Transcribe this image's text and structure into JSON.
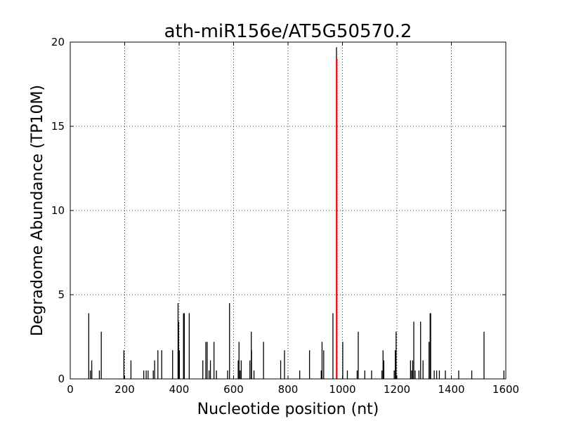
{
  "chart_data": {
    "type": "bar",
    "title": "ath-miR156e/AT5G50570.2",
    "xlabel": "Nucleotide position (nt)",
    "ylabel": "Degradome Abundance (TP10M)",
    "xlim": [
      0,
      1600
    ],
    "ylim": [
      0,
      20
    ],
    "xticks": [
      0,
      200,
      400,
      600,
      800,
      1000,
      1200,
      1400,
      1600
    ],
    "yticks": [
      0,
      5,
      10,
      15,
      20
    ],
    "grid": true,
    "series": [
      {
        "color": "#000000",
        "points": [
          [
            68,
            3.9
          ],
          [
            74,
            0.5
          ],
          [
            79,
            1.1
          ],
          [
            79,
            0.5
          ],
          [
            107,
            0.5
          ],
          [
            114,
            2.8
          ],
          [
            197,
            1.7
          ],
          [
            223,
            1.1
          ],
          [
            270,
            0.5
          ],
          [
            279,
            0.5
          ],
          [
            286,
            0.5
          ],
          [
            305,
            0.5
          ],
          [
            310,
            1.1
          ],
          [
            322,
            1.7
          ],
          [
            336,
            1.7
          ],
          [
            376,
            1.7
          ],
          [
            396,
            4.5
          ],
          [
            398,
            3.4
          ],
          [
            401,
            1.7
          ],
          [
            416,
            3.9
          ],
          [
            419,
            3.9
          ],
          [
            437,
            3.9
          ],
          [
            487,
            1.1
          ],
          [
            498,
            2.2
          ],
          [
            503,
            2.2
          ],
          [
            510,
            0.5
          ],
          [
            515,
            1.1
          ],
          [
            528,
            2.2
          ],
          [
            537,
            0.5
          ],
          [
            578,
            0.5
          ],
          [
            585,
            4.5
          ],
          [
            617,
            1.1
          ],
          [
            620,
            2.2
          ],
          [
            624,
            0.5
          ],
          [
            628,
            1.1
          ],
          [
            660,
            1.1
          ],
          [
            665,
            2.8
          ],
          [
            666,
            1.7
          ],
          [
            675,
            0.5
          ],
          [
            710,
            2.2
          ],
          [
            773,
            1.1
          ],
          [
            787,
            1.7
          ],
          [
            843,
            0.5
          ],
          [
            879,
            1.7
          ],
          [
            922,
            0.5
          ],
          [
            925,
            2.2
          ],
          [
            931,
            1.7
          ],
          [
            965,
            3.9
          ],
          [
            978,
            19.7
          ],
          [
            1001,
            2.2
          ],
          [
            1018,
            0.5
          ],
          [
            1054,
            0.5
          ],
          [
            1058,
            2.8
          ],
          [
            1082,
            0.5
          ],
          [
            1107,
            0.5
          ],
          [
            1145,
            0.5
          ],
          [
            1149,
            1.7
          ],
          [
            1152,
            1.1
          ],
          [
            1190,
            0.5
          ],
          [
            1194,
            1.7
          ],
          [
            1197,
            2.8
          ],
          [
            1250,
            1.1
          ],
          [
            1254,
            0.5
          ],
          [
            1258,
            1.1
          ],
          [
            1262,
            3.4
          ],
          [
            1267,
            0.5
          ],
          [
            1281,
            0.5
          ],
          [
            1287,
            3.4
          ],
          [
            1296,
            1.1
          ],
          [
            1318,
            2.2
          ],
          [
            1322,
            3.9
          ],
          [
            1324,
            3.9
          ],
          [
            1337,
            0.5
          ],
          [
            1346,
            0.5
          ],
          [
            1356,
            0.5
          ],
          [
            1378,
            0.5
          ],
          [
            1427,
            0.5
          ],
          [
            1475,
            0.5
          ],
          [
            1520,
            2.8
          ],
          [
            1593,
            0.5
          ]
        ]
      },
      {
        "color": "#ff0000",
        "points": [
          [
            979,
            19
          ]
        ]
      }
    ]
  }
}
